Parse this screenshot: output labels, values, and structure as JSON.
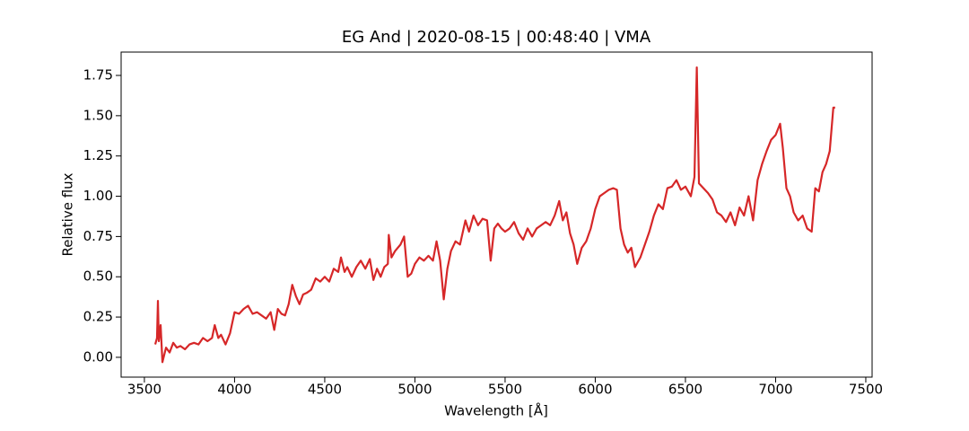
{
  "chart_data": {
    "type": "line",
    "title": "EG And | 2020-08-15 | 00:48:40 | VMA",
    "xlabel": "Wavelength [Å]",
    "ylabel": "Relative flux",
    "color": "#d62728",
    "xlim": [
      3371,
      7535
    ],
    "ylim": [
      -0.123,
      1.895
    ],
    "xticks": [
      3500,
      4000,
      4500,
      5000,
      5500,
      6000,
      6500,
      7000,
      7500
    ],
    "yticks": [
      {
        "value": 0,
        "label": "0.00"
      },
      {
        "value": 0.25,
        "label": "0.25"
      },
      {
        "value": 0.5,
        "label": "0.50"
      },
      {
        "value": 0.75,
        "label": "0.75"
      },
      {
        "value": 1,
        "label": "1.00"
      },
      {
        "value": 1.25,
        "label": "1.25"
      },
      {
        "value": 1.5,
        "label": "1.50"
      },
      {
        "value": 1.75,
        "label": "1.75"
      }
    ],
    "x": [
      3560,
      3570,
      3575,
      3580,
      3590,
      3600,
      3620,
      3640,
      3660,
      3680,
      3700,
      3725,
      3750,
      3775,
      3800,
      3825,
      3850,
      3875,
      3890,
      3910,
      3925,
      3950,
      3975,
      4000,
      4025,
      4050,
      4075,
      4100,
      4125,
      4150,
      4175,
      4200,
      4220,
      4240,
      4260,
      4280,
      4300,
      4320,
      4340,
      4360,
      4380,
      4400,
      4425,
      4450,
      4475,
      4500,
      4525,
      4550,
      4575,
      4590,
      4610,
      4625,
      4650,
      4675,
      4700,
      4725,
      4750,
      4770,
      4790,
      4810,
      4830,
      4850,
      4855,
      4870,
      4890,
      4920,
      4940,
      4960,
      4980,
      5000,
      5025,
      5050,
      5075,
      5100,
      5120,
      5140,
      5160,
      5180,
      5200,
      5225,
      5250,
      5280,
      5300,
      5325,
      5350,
      5375,
      5400,
      5420,
      5440,
      5460,
      5480,
      5500,
      5525,
      5550,
      5575,
      5600,
      5625,
      5650,
      5675,
      5700,
      5725,
      5750,
      5775,
      5800,
      5820,
      5840,
      5860,
      5880,
      5900,
      5925,
      5950,
      5975,
      6000,
      6025,
      6050,
      6075,
      6100,
      6120,
      6140,
      6160,
      6180,
      6200,
      6220,
      6250,
      6275,
      6300,
      6325,
      6350,
      6375,
      6400,
      6425,
      6450,
      6475,
      6500,
      6530,
      6550,
      6563,
      6575,
      6600,
      6625,
      6650,
      6675,
      6700,
      6725,
      6750,
      6775,
      6800,
      6825,
      6850,
      6875,
      6900,
      6925,
      6950,
      6975,
      7000,
      7025,
      7040,
      7060,
      7080,
      7100,
      7125,
      7150,
      7175,
      7200,
      7220,
      7240,
      7260,
      7280,
      7300,
      7320,
      7330
    ],
    "values": [
      0.08,
      0.12,
      0.35,
      0.1,
      0.2,
      -0.03,
      0.06,
      0.03,
      0.09,
      0.06,
      0.07,
      0.05,
      0.08,
      0.09,
      0.08,
      0.12,
      0.1,
      0.12,
      0.2,
      0.12,
      0.14,
      0.08,
      0.15,
      0.28,
      0.27,
      0.3,
      0.32,
      0.27,
      0.28,
      0.26,
      0.24,
      0.28,
      0.17,
      0.3,
      0.27,
      0.26,
      0.33,
      0.45,
      0.38,
      0.33,
      0.39,
      0.4,
      0.42,
      0.49,
      0.47,
      0.5,
      0.47,
      0.55,
      0.53,
      0.62,
      0.53,
      0.56,
      0.5,
      0.56,
      0.6,
      0.55,
      0.61,
      0.48,
      0.55,
      0.5,
      0.56,
      0.58,
      0.76,
      0.62,
      0.66,
      0.7,
      0.75,
      0.5,
      0.52,
      0.58,
      0.62,
      0.6,
      0.63,
      0.6,
      0.72,
      0.6,
      0.36,
      0.55,
      0.66,
      0.72,
      0.7,
      0.85,
      0.78,
      0.88,
      0.82,
      0.86,
      0.85,
      0.6,
      0.8,
      0.83,
      0.8,
      0.78,
      0.8,
      0.84,
      0.77,
      0.73,
      0.8,
      0.75,
      0.8,
      0.82,
      0.84,
      0.82,
      0.88,
      0.97,
      0.85,
      0.9,
      0.77,
      0.7,
      0.58,
      0.68,
      0.72,
      0.8,
      0.92,
      1.0,
      1.02,
      1.04,
      1.05,
      1.04,
      0.8,
      0.7,
      0.65,
      0.68,
      0.56,
      0.62,
      0.7,
      0.78,
      0.88,
      0.95,
      0.92,
      1.05,
      1.06,
      1.1,
      1.04,
      1.06,
      1.0,
      1.12,
      1.8,
      1.08,
      1.05,
      1.02,
      0.98,
      0.9,
      0.88,
      0.84,
      0.9,
      0.82,
      0.93,
      0.88,
      1.0,
      0.85,
      1.1,
      1.2,
      1.28,
      1.35,
      1.38,
      1.45,
      1.3,
      1.05,
      1.0,
      0.9,
      0.85,
      0.88,
      0.8,
      0.78,
      1.05,
      1.03,
      1.15,
      1.2,
      1.28,
      1.55,
      1.55
    ]
  }
}
